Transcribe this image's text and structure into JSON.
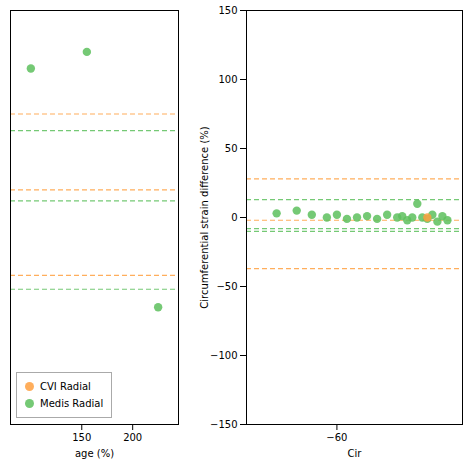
{
  "chart_data": [
    {
      "type": "scatter",
      "xlabel": "age (%)",
      "xlim": [
        80,
        245
      ],
      "ylim": [
        -150,
        150
      ],
      "xticks": [
        150,
        200
      ],
      "tick_labels": "x",
      "grid": false,
      "legend": "lower left",
      "series": [
        {
          "name": "CVI Radial",
          "color": "#FFA040",
          "marker": "circle",
          "line_style": "dashed",
          "hlines": [
            75,
            20,
            -42
          ]
        },
        {
          "name": "Medis Radial",
          "color": "#5DBF5D",
          "marker": "circle",
          "line_style": "dashed",
          "x": [
            100,
            155,
            225
          ],
          "values": [
            108,
            120,
            -65
          ],
          "hlines": [
            63,
            12,
            -52
          ]
        }
      ]
    },
    {
      "type": "scatter",
      "xlabel": "Cir",
      "ylabel": "Circumferential strain difference (%)",
      "xlim": [
        -78,
        -35
      ],
      "ylim": [
        -150,
        150
      ],
      "xticks": [
        -60
      ],
      "yticks": [
        -150,
        -100,
        -50,
        0,
        50,
        100,
        150
      ],
      "grid": false,
      "series": [
        {
          "name": "CVI Radial",
          "color": "#FFA040",
          "marker": "circle",
          "line_style": "dashed",
          "x": [
            -42
          ],
          "values": [
            0
          ],
          "hlines": [
            28,
            -2,
            -37
          ]
        },
        {
          "name": "Medis Radial",
          "color": "#5DBF5D",
          "marker": "circle",
          "line_style": "dashed",
          "x": [
            -72,
            -68,
            -65,
            -62,
            -60,
            -58,
            -56,
            -54,
            -52,
            -50,
            -48,
            -47,
            -46,
            -45,
            -44,
            -43,
            -42,
            -41,
            -40,
            -39,
            -38
          ],
          "values": [
            3,
            5,
            2,
            0,
            2,
            -1,
            0,
            1,
            -1,
            2,
            0,
            1,
            -2,
            0,
            10,
            0,
            -1,
            2,
            -3,
            1,
            -2
          ],
          "hlines": [
            13,
            -8,
            -10
          ]
        }
      ]
    }
  ]
}
